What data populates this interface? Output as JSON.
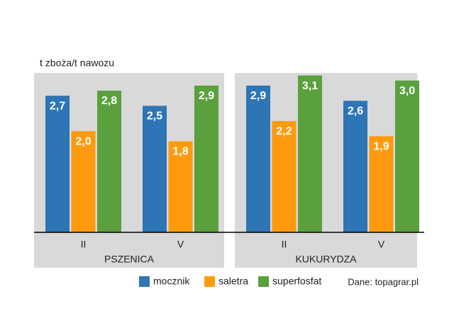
{
  "chart_data": {
    "type": "bar",
    "y_label": "t zboża/t nawozu",
    "note": "Dane: topagrar.pl",
    "ylim": [
      0,
      3.5
    ],
    "series": [
      {
        "name": "mocznik",
        "color": "#2e75b6"
      },
      {
        "name": "saletra",
        "color": "#ff9a0e"
      },
      {
        "name": "superfosfat",
        "color": "#5aa03c"
      }
    ],
    "panels": [
      {
        "title": "PSZENICA",
        "categories": [
          "II",
          "V"
        ],
        "values": [
          [
            2.7,
            2.0,
            2.8
          ],
          [
            2.5,
            1.8,
            2.9
          ]
        ],
        "value_labels": [
          [
            "2,7",
            "2,0",
            "2,8"
          ],
          [
            "2,5",
            "1,8",
            "2,9"
          ]
        ]
      },
      {
        "title": "KUKURYDZA",
        "categories": [
          "II",
          "V"
        ],
        "values": [
          [
            2.9,
            2.2,
            3.1
          ],
          [
            2.6,
            1.9,
            3.0
          ]
        ],
        "value_labels": [
          [
            "2,9",
            "2,2",
            "3,1"
          ],
          [
            "2,6",
            "1,9",
            "3,0"
          ]
        ]
      }
    ]
  }
}
